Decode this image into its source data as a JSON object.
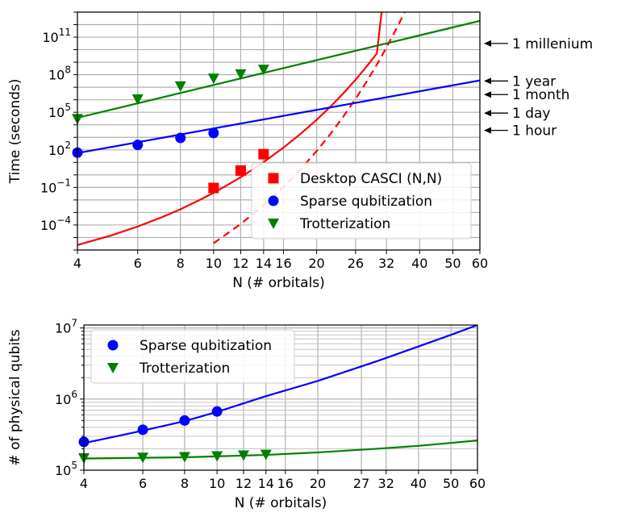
{
  "chart_data": [
    {
      "type": "line",
      "xlabel": "N (# orbitals)",
      "ylabel": "Time (seconds)",
      "xscale": "log",
      "yscale": "log",
      "xlim": [
        4,
        60
      ],
      "ylim": [
        1e-06,
        10000000000000.0
      ],
      "grid": true,
      "legend_position": "lower right",
      "x_ticks": [
        4,
        6,
        8,
        10,
        12,
        14,
        16,
        20,
        26,
        32,
        40,
        50,
        60
      ],
      "x_tick_labels": [
        "4",
        "6",
        "8",
        "10",
        "12",
        "14",
        "16",
        "20",
        "26",
        "32",
        "40",
        "50",
        "60"
      ],
      "y_ticks": [
        0.0001,
        0.1,
        100.0,
        100000.0,
        100000000.0,
        100000000000.0
      ],
      "y_tick_labels": [
        {
          "base": "10",
          "exp": "−4"
        },
        {
          "base": "10",
          "exp": "−1"
        },
        {
          "base": "10",
          "exp": "2"
        },
        {
          "base": "10",
          "exp": "5"
        },
        {
          "base": "10",
          "exp": "8"
        },
        {
          "base": "10",
          "exp": "11"
        }
      ],
      "annotations": [
        {
          "text": "1 millenium",
          "y": 31500000000.0
        },
        {
          "text": "1 year",
          "y": 31500000.0
        },
        {
          "text": "1 month",
          "y": 2600000.0
        },
        {
          "text": "1 day",
          "y": 86400
        },
        {
          "text": "1 hour",
          "y": 3600
        }
      ],
      "series": [
        {
          "name": "Desktop CASCI (N,N)",
          "color": "#ff0000",
          "marker": "square",
          "points": {
            "x": [
              10,
              12,
              14
            ],
            "y": [
              0.09,
              2.2,
              45
            ]
          },
          "fit": {
            "x": [
              4,
              5,
              6,
              7,
              8,
              9,
              10,
              11,
              12,
              13,
              14,
              16,
              18,
              20,
              22,
              24,
              26,
              28,
              30,
              31
            ],
            "y": [
              2.5e-06,
              1.4e-05,
              7.5e-05,
              0.00038,
              0.0018,
              0.0085,
              0.037,
              0.16,
              0.66,
              2.7,
              10.5,
              150,
              2000,
              25000.0,
              300000.0,
              3500000.0,
              40000000.0,
              450000000.0,
              5000000000.0,
              12000000000000.0
            ]
          }
        },
        {
          "name": "",
          "color": "#ff0000",
          "marker": "none",
          "dashed": true,
          "fit": {
            "x": [
              10,
              12,
              14,
              16,
              18,
              20,
              22,
              24,
              26,
              28,
              30,
              32,
              34,
              36,
              37.5
            ],
            "y": [
              3.5e-06,
              0.00012,
              0.0038,
              0.11,
              3.0,
              80,
              2000.0,
              50000.0,
              1200000.0,
              28000000.0,
              650000000.0,
              15000000000.0,
              340000000000.0,
              7500000000000.0,
              120000000000000.0
            ]
          }
        },
        {
          "name": "Sparse qubitization",
          "color": "#0000ff",
          "marker": "circle",
          "points": {
            "x": [
              4,
              6,
              8,
              10
            ],
            "y": [
              60,
              250,
              900,
              2200
            ]
          },
          "fit": {
            "x": [
              4,
              60
            ],
            "y": [
              55,
              35000000.0
            ]
          }
        },
        {
          "name": "Trotterization",
          "color": "#008000",
          "marker": "triangle-down",
          "points": {
            "x": [
              4,
              6,
              8,
              10,
              12,
              14
            ],
            "y": [
              30000.0,
              1100000.0,
              12000000.0,
              50000000.0,
              110000000.0,
              260000000.0
            ]
          },
          "fit": {
            "x": [
              4,
              60
            ],
            "y": [
              36000.0,
              2000000000000.0
            ]
          }
        }
      ]
    },
    {
      "type": "line",
      "xlabel": "N (# orbitals)",
      "ylabel": "# of physical qubits",
      "xscale": "log",
      "yscale": "log",
      "xlim": [
        4,
        60
      ],
      "ylim": [
        100000.0,
        11000000.0
      ],
      "grid": true,
      "legend_position": "upper left",
      "x_ticks": [
        4,
        6,
        8,
        10,
        12,
        14,
        16,
        20,
        27,
        32,
        40,
        50,
        60
      ],
      "x_tick_labels": [
        "4",
        "6",
        "8",
        "10",
        "12",
        "14",
        "16",
        "20",
        "27",
        "32",
        "40",
        "50",
        "60"
      ],
      "y_ticks": [
        100000.0,
        1000000.0,
        10000000.0
      ],
      "y_tick_labels": [
        {
          "base": "10",
          "exp": "5"
        },
        {
          "base": "10",
          "exp": "6"
        },
        {
          "base": "10",
          "exp": "7"
        }
      ],
      "series": [
        {
          "name": "Sparse qubitization",
          "color": "#0000ff",
          "marker": "circle",
          "points": {
            "x": [
              4,
              6,
              8,
              10
            ],
            "y": [
              250000.0,
              370000.0,
              500000.0,
              670000.0
            ]
          },
          "fit": {
            "x": [
              4,
              6,
              8,
              10,
              14,
              20,
              30,
              40,
              50,
              60
            ],
            "y": [
              240000.0,
              360000.0,
              490000.0,
              660000.0,
              1100000.0,
              1800000.0,
              3400000.0,
              5500000.0,
              8000000.0,
              11000000.0
            ]
          }
        },
        {
          "name": "Trotterization",
          "color": "#008000",
          "marker": "triangle-down",
          "points": {
            "x": [
              4,
              6,
              8,
              10,
              12,
              14
            ],
            "y": [
              148000.0,
              151000.0,
              154000.0,
              158000.0,
              162000.0,
              166000.0
            ]
          },
          "fit": {
            "x": [
              4,
              8,
              14,
              20,
              30,
              40,
              50,
              60
            ],
            "y": [
              146000.0,
              152000.0,
              164000.0,
              178000.0,
              200000.0,
              220000.0,
              242000.0,
              262000.0
            ]
          }
        }
      ]
    }
  ]
}
